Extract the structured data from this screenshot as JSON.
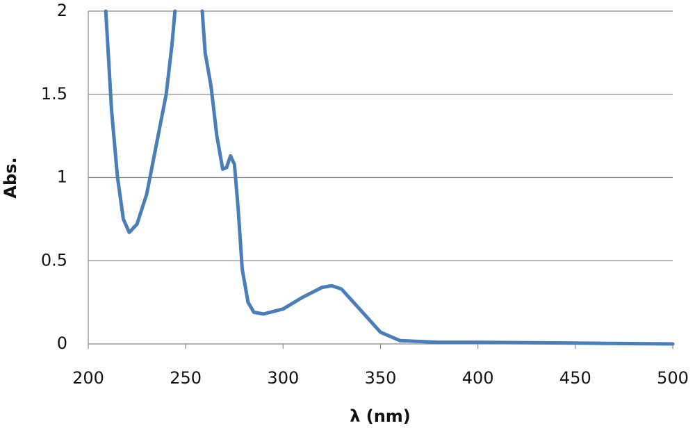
{
  "chart_data": {
    "type": "line",
    "x_label": "λ (nm)",
    "y_label": "Abs.",
    "x": [
      209,
      212,
      215,
      218,
      221,
      225,
      230,
      235,
      240,
      243,
      244.5,
      251,
      258.5,
      260,
      263,
      266,
      269,
      271,
      273,
      275,
      277,
      279,
      282,
      285,
      290,
      300,
      310,
      320,
      325,
      330,
      340,
      350,
      360,
      380,
      400,
      450,
      500
    ],
    "values": [
      2,
      1.4,
      1.0,
      0.75,
      0.67,
      0.72,
      0.9,
      1.2,
      1.5,
      1.8,
      2,
      null,
      2,
      1.75,
      1.55,
      1.25,
      1.05,
      1.06,
      1.13,
      1.08,
      0.8,
      0.45,
      0.25,
      0.19,
      0.18,
      0.21,
      0.28,
      0.34,
      0.35,
      0.33,
      0.2,
      0.07,
      0.02,
      0.01,
      0.01,
      0.005,
      0
    ],
    "color": "#4a7ebb",
    "xlim": [
      200,
      500
    ],
    "xticks": [
      200,
      250,
      300,
      350,
      400,
      450,
      500
    ],
    "ylim": [
      0,
      2
    ],
    "yticks": [
      0,
      0.5,
      1,
      1.5,
      2
    ],
    "grid": true
  }
}
